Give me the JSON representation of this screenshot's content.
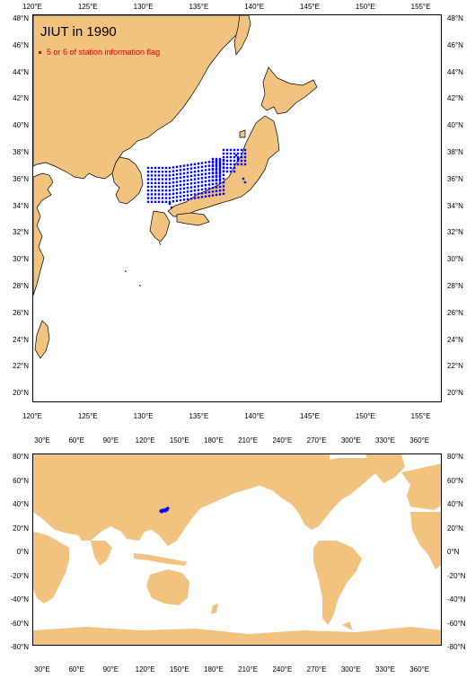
{
  "top_map": {
    "title": "JIUT in 1990",
    "legend": "5 or 6 of station information flag",
    "lon_labels": [
      "120°E",
      "125°E",
      "130°E",
      "135°E",
      "140°E",
      "145°E",
      "150°E",
      "155°E"
    ],
    "lat_labels_left": [
      "48°N",
      "46°N",
      "44°N",
      "42°N",
      "40°N",
      "38°N",
      "36°N",
      "34°N",
      "32°N",
      "30°N",
      "28°N",
      "26°N",
      "24°N",
      "22°N",
      "20°N"
    ],
    "lat_labels_right": [
      "48°N",
      "46°N",
      "44°N",
      "42°N",
      "40°N",
      "38°N",
      "36°N",
      "34°N",
      "32°N",
      "30°N",
      "28°N",
      "26°N",
      "24°N",
      "22°N",
      "20°N"
    ],
    "lon_range": [
      120,
      157
    ],
    "lat_range": [
      19,
      48
    ]
  },
  "bottom_map": {
    "lon_labels": [
      "30°E",
      "60°E",
      "90°E",
      "120°E",
      "150°E",
      "180°E",
      "210°E",
      "240°E",
      "270°E",
      "300°E",
      "330°E",
      "360°E"
    ],
    "lat_labels_left": [
      "80°N",
      "60°N",
      "40°N",
      "20°N",
      "0°N",
      "-20°N",
      "-40°N",
      "-60°N",
      "-80°N"
    ],
    "lat_labels_right": [
      "80°N",
      "60°N",
      "40°N",
      "20°N",
      "0°N",
      "-20°N",
      "-40°N",
      "-60°N",
      "-80°N"
    ],
    "lon_range": [
      20,
      375
    ],
    "lat_range": [
      -80,
      80
    ]
  },
  "colors": {
    "land": "#f2c27f",
    "station": "#0000ff",
    "flag": "#e00000",
    "ocean": "#ffffff"
  }
}
